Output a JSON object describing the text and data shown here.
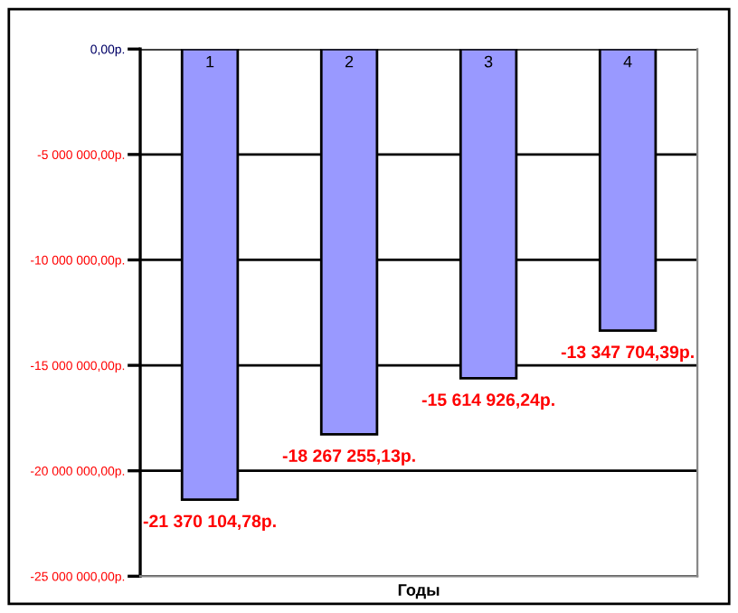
{
  "chart_data": {
    "type": "bar",
    "xlabel": "Годы",
    "categories": [
      "1",
      "2",
      "3",
      "4"
    ],
    "values": [
      -21370104.78,
      -18267255.13,
      -15614926.24,
      -13347704.39
    ],
    "value_labels": [
      "-21 370 104,78р.",
      "-18 267 255,13р.",
      "-15 614 926,24р.",
      "-13 347 704,39р."
    ],
    "color": "#9999ff",
    "ylim": [
      -25000000,
      0
    ],
    "yticks": [
      {
        "value": 0,
        "label": "0,00р."
      },
      {
        "value": -5000000,
        "label": "-5 000 000,00р."
      },
      {
        "value": -10000000,
        "label": "-10 000 000,00р."
      },
      {
        "value": -15000000,
        "label": "-15 000 000,00р."
      },
      {
        "value": -20000000,
        "label": "-20 000 000,00р."
      },
      {
        "value": -25000000,
        "label": "-25 000 000,00р."
      }
    ],
    "grid": "y",
    "legend": false
  }
}
